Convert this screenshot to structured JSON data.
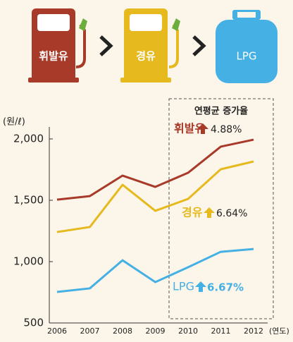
{
  "chart_data": {
    "type": "line",
    "y_unit": "(원/ℓ)",
    "x_unit": "(연도)",
    "categories": [
      "2006",
      "2007",
      "2008",
      "2009",
      "2010",
      "2011",
      "2012"
    ],
    "series": [
      {
        "name": "휘발유",
        "color": "#a83a2a",
        "values": [
          1505,
          1534,
          1701,
          1609,
          1724,
          1937,
          1994
        ]
      },
      {
        "name": "경유",
        "color": "#e6b91e",
        "values": [
          1241,
          1282,
          1626,
          1414,
          1511,
          1753,
          1816
        ]
      },
      {
        "name": "LPG",
        "color": "#44b0e4",
        "values": [
          753,
          782,
          1011,
          833,
          954,
          1080,
          1103
        ]
      }
    ],
    "ylim": [
      500,
      2000
    ],
    "yticks": [
      {
        "value": 500,
        "label": "500"
      },
      {
        "value": 1000,
        "label": "1,000"
      },
      {
        "value": 1500,
        "label": "1,500"
      },
      {
        "value": 2000,
        "label": "2,000"
      }
    ],
    "grid": false,
    "growth_title": "연평균 증가율",
    "growth_rates": [
      "4.88%",
      "6.64%",
      "6.67%"
    ]
  }
}
